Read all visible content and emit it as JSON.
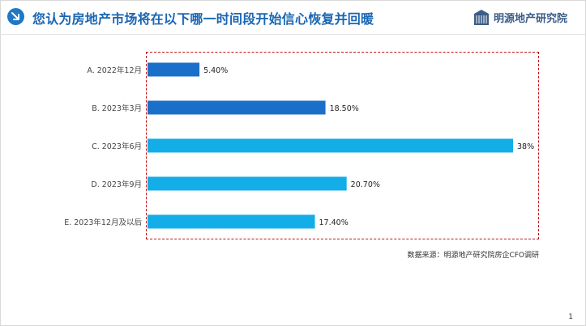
{
  "header": {
    "title": "您认为房地产市场将在以下哪一时间段开始信心恢复并回暖",
    "logo_text": "明源地产研究院",
    "badge_icon": "arrow-down-right-icon"
  },
  "colors": {
    "title": "#1a66b3",
    "bar_dark": "#1a6fc9",
    "bar_light": "#13aee8",
    "plot_border": "#c0141a"
  },
  "chart_data": {
    "type": "bar",
    "orientation": "horizontal",
    "categories": [
      "A. 2022年12月",
      "B. 2023年3月",
      "C. 2023年6月",
      "D. 2023年9月",
      "E. 2023年12月及以后"
    ],
    "values": [
      5.4,
      18.5,
      38,
      20.7,
      17.4
    ],
    "value_labels": [
      "5.40%",
      "18.50%",
      "38%",
      "20.70%",
      "17.40%"
    ],
    "bar_colors": [
      "#1a6fc9",
      "#1a6fc9",
      "#13aee8",
      "#13aee8",
      "#13aee8"
    ],
    "xlim": [
      0,
      38
    ],
    "title": "",
    "xlabel": "",
    "ylabel": "",
    "grid": false
  },
  "footer": {
    "source": "数据来源：明源地产研究院房企CFO调研",
    "page_number": "1"
  }
}
